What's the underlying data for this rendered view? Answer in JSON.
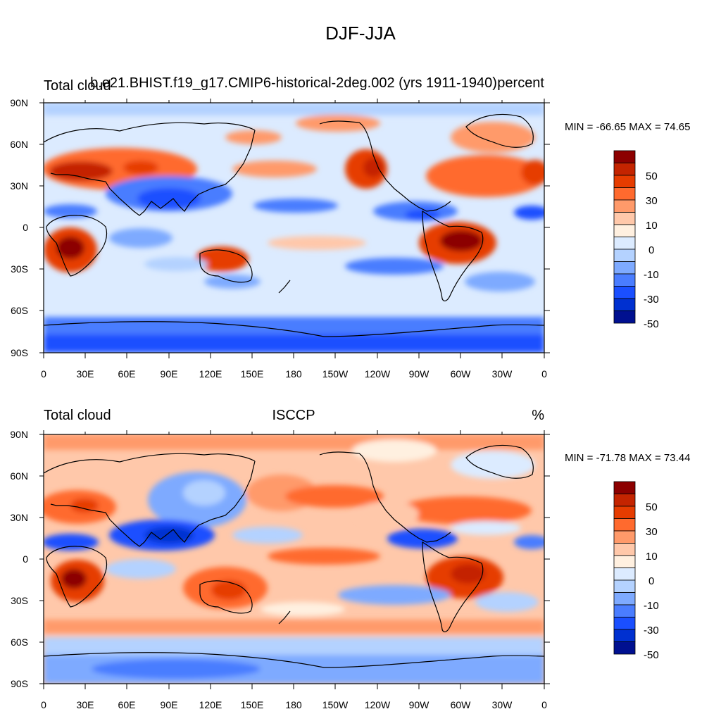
{
  "title": "DJF-JJA",
  "panels": [
    {
      "left_label": "Total cloud",
      "center_label": "b.e21.BHIST.f19_g17.CMIP6-historical-2deg.002 (yrs 1911-1940)",
      "right_label": "percent",
      "stats": "MIN = -66.65 MAX =  74.65",
      "min": -66.65,
      "max": 74.65
    },
    {
      "left_label": "Total cloud",
      "center_label": "ISCCP",
      "right_label": "%",
      "stats": "MIN = -71.78 MAX =  73.44",
      "min": -71.78,
      "max": 73.44
    }
  ],
  "lat_ticks": [
    "90N",
    "60N",
    "30N",
    "0",
    "30S",
    "60S",
    "90S"
  ],
  "lon_ticks": [
    "0",
    "30E",
    "60E",
    "90E",
    "120E",
    "150E",
    "180",
    "150W",
    "120W",
    "90W",
    "60W",
    "30W",
    "0"
  ],
  "colorbar": {
    "labels": [
      "50",
      "30",
      "10",
      "0",
      "-10",
      "-30",
      "-50"
    ],
    "colors": [
      "#8c0000",
      "#c42400",
      "#e63c00",
      "#ff6a2e",
      "#ff9a6a",
      "#ffc8aa",
      "#fff0e0",
      "#dcebff",
      "#b4d2ff",
      "#7eaaff",
      "#4a7dff",
      "#1a4fff",
      "#0030d0",
      "#001090"
    ]
  }
}
